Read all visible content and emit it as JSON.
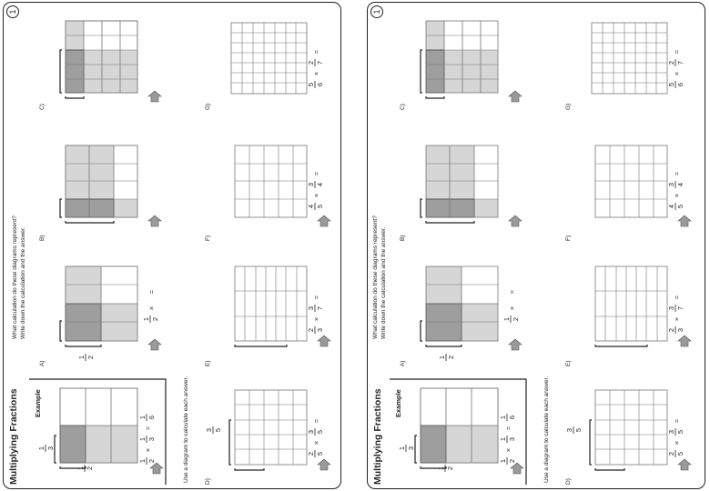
{
  "sheets": [
    {
      "page_number": "1",
      "title": "Multiplying Fractions",
      "example": {
        "heading": "Example",
        "top_fraction": [
          "1",
          "3"
        ],
        "left_fraction": [
          "1",
          "2"
        ],
        "equation": [
          "1",
          "2",
          "×",
          "1",
          "3",
          "=",
          "1",
          "6"
        ]
      },
      "instructions_part1": [
        "What calculation do these diagrams represent?",
        "Write down the calculation and the answer."
      ],
      "instructions_part2": "Use a diagram to calculate each answer.",
      "problem_labels": {
        "A": "A)",
        "B": "B)",
        "C": "C)",
        "D": "D)",
        "E": "E)",
        "F": "F)",
        "G": "G)"
      },
      "A": {
        "left_fraction": [
          "1",
          "2"
        ],
        "equation": [
          "1",
          "2",
          "×",
          "="
        ]
      },
      "D": {
        "top_fraction": [
          "3",
          "5"
        ],
        "equation": [
          "2",
          "5",
          "×",
          "3",
          "5",
          "="
        ]
      },
      "E": {
        "equation": [
          "2",
          "3",
          "×",
          "3",
          "7",
          "="
        ]
      },
      "F": {
        "equation": [
          "4",
          "5",
          "×",
          "3",
          "4",
          "="
        ]
      },
      "G": {
        "equation": [
          "5",
          "6",
          "×",
          "2",
          "7",
          "="
        ]
      }
    },
    {
      "page_number": "1",
      "title": "Multiplying Fractions",
      "example": {
        "heading": "Example",
        "top_fraction": [
          "1",
          "3"
        ],
        "left_fraction": [
          "1",
          "2"
        ],
        "equation": [
          "1",
          "2",
          "×",
          "1",
          "3",
          "=",
          "1",
          "6"
        ]
      },
      "instructions_part1": [
        "What calculation do these diagrams represent?",
        "Write down the calculation and the answer."
      ],
      "instructions_part2": "Use a diagram to calculate each answer.",
      "problem_labels": {
        "A": "A)",
        "B": "B)",
        "C": "C)",
        "D": "D)",
        "E": "E)",
        "F": "F)",
        "G": "G)"
      },
      "A": {
        "left_fraction": [
          "1",
          "2"
        ],
        "equation": [
          "1",
          "2",
          "×",
          "="
        ]
      },
      "D": {
        "top_fraction": [
          "3",
          "5"
        ],
        "equation": [
          "2",
          "5",
          "×",
          "3",
          "5",
          "="
        ]
      },
      "E": {
        "equation": [
          "2",
          "3",
          "×",
          "3",
          "7",
          "="
        ]
      },
      "F": {
        "equation": [
          "4",
          "5",
          "×",
          "3",
          "4",
          "="
        ]
      },
      "G": {
        "equation": [
          "5",
          "6",
          "×",
          "2",
          "7",
          "="
        ]
      }
    }
  ],
  "colors": {
    "light_shade": "#d6d6d6",
    "dark_shade": "#9e9e9e",
    "grid_line": "#777777",
    "arrow": "#9a9a9a"
  }
}
